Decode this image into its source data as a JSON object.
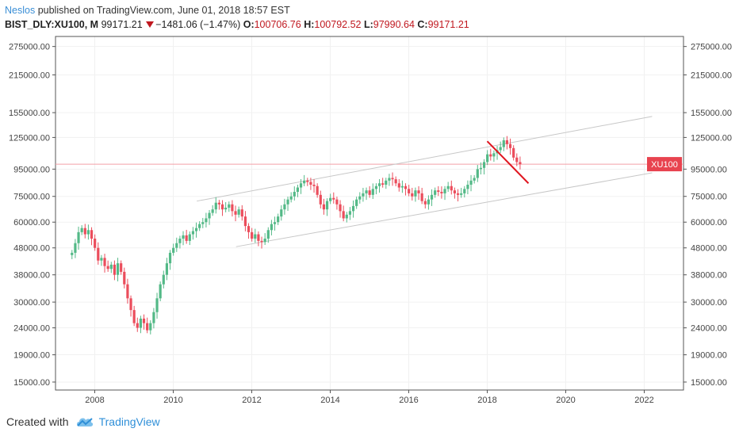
{
  "header": {
    "author": "Neslos",
    "published_text": "published on TradingView.com, June 01, 2018 18:57 EST",
    "symbol": "BIST_DLY:XU100, M",
    "last_price": "99171.21",
    "change": "−1481.06 (−1.47%)",
    "open_label": "O:",
    "open_value": "100706.76",
    "high_label": "H:",
    "high_value": "100792.52",
    "low_label": "L:",
    "low_value": "97990.64",
    "close_label": "C:",
    "close_value": "99171.21"
  },
  "footer": {
    "created_with": "Created with",
    "brand": "TradingView"
  },
  "colors": {
    "up": "#53b987",
    "down": "#eb4d5c",
    "price_line": "#f3a0a6",
    "price_badge": "#e8434f",
    "channel": "#c7c7c7",
    "trend_arrow": "#e0151f",
    "grid": "#f1f1f1"
  },
  "chart_data": {
    "type": "candlestick",
    "scale": "log",
    "ylim": [
      14000,
      300000
    ],
    "xlim": [
      2007.0,
      2023.0
    ],
    "y_ticks": [
      15000,
      19000,
      24000,
      30000,
      38000,
      48000,
      60000,
      75000,
      95000,
      125000,
      155000,
      215000,
      275000
    ],
    "y_tick_labels": [
      "15000.00",
      "19000.00",
      "24000.00",
      "30000.00",
      "38000.00",
      "48000.00",
      "60000.00",
      "75000.00",
      "95000.00",
      "125000.00",
      "155000.00",
      "215000.00",
      "275000.00"
    ],
    "x_ticks": [
      2008,
      2010,
      2012,
      2014,
      2016,
      2018,
      2020,
      2022
    ],
    "x_tick_labels": [
      "2008",
      "2010",
      "2012",
      "2014",
      "2016",
      "2018",
      "2020",
      "2022"
    ],
    "price_label": "XU100",
    "last_close": 99171.21,
    "channel_upper": [
      [
        2010.6,
        72000
      ],
      [
        2022.2,
        150000
      ]
    ],
    "channel_lower": [
      [
        2011.6,
        48500
      ],
      [
        2022.2,
        92000
      ]
    ],
    "trend_arrow": [
      [
        2018.0,
        121000
      ],
      [
        2019.05,
        84000
      ]
    ],
    "closes": [
      46000,
      50000,
      55000,
      57000,
      54000,
      56000,
      52000,
      48000,
      43000,
      44000,
      41000,
      40000,
      41500,
      38000,
      42000,
      39000,
      35000,
      31000,
      28000,
      25000,
      24000,
      26000,
      25000,
      23500,
      25000,
      27500,
      31000,
      35000,
      38000,
      42000,
      46000,
      48000,
      50000,
      52000,
      53500,
      51000,
      54000,
      55500,
      57000,
      59000,
      60000,
      62000,
      65000,
      67000,
      71000,
      70000,
      67000,
      68000,
      70000,
      66000,
      64000,
      67000,
      63000,
      58000,
      55000,
      52000,
      54000,
      51000,
      50500,
      52000,
      56000,
      59000,
      60000,
      63000,
      67000,
      70000,
      73000,
      75000,
      78000,
      81000,
      84000,
      86000,
      85000,
      83000,
      82000,
      76000,
      70000,
      67000,
      72000,
      74000,
      73000,
      70000,
      66000,
      62000,
      64000,
      66000,
      69000,
      73000,
      75000,
      77000,
      79000,
      76000,
      80000,
      82000,
      84000,
      83000,
      86000,
      88000,
      87000,
      84000,
      81000,
      82000,
      80000,
      77000,
      75000,
      79000,
      77000,
      72000,
      70000,
      73000,
      76000,
      79000,
      78000,
      77000,
      80000,
      82000,
      79000,
      77000,
      76000,
      77000,
      80000,
      83000,
      86000,
      88000,
      95000,
      96000,
      101000,
      108000,
      106000,
      109000,
      112000,
      115000,
      122000,
      118000,
      114000,
      105000,
      101000,
      99171
    ]
  }
}
